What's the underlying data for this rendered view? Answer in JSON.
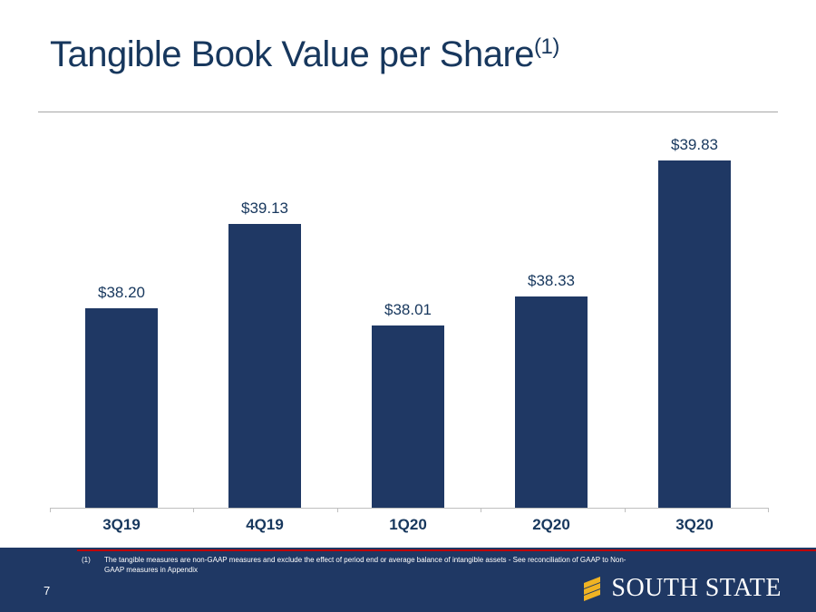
{
  "slide": {
    "title": "Tangible Book Value per Share",
    "title_superscript": "(1)",
    "page_number": "7",
    "footnote_marker": "(1)",
    "footnote_line1": "The tangible measures are non-GAAP measures and exclude the effect of period end or  average balance of intangible assets - See reconciliation  of GAAP to Non-",
    "footnote_line2": "GAAP measures in Appendix",
    "logo_text": "SOUTH STATE"
  },
  "chart_data": {
    "type": "bar",
    "categories": [
      "3Q19",
      "4Q19",
      "1Q20",
      "2Q20",
      "3Q20"
    ],
    "values": [
      38.2,
      39.13,
      38.01,
      38.33,
      39.83
    ],
    "labels": [
      "$38.20",
      "$39.13",
      "$38.01",
      "$38.33",
      "$39.83"
    ],
    "title": "Tangible Book Value per Share",
    "xlabel": "",
    "ylabel": "",
    "ylim": [
      36,
      40
    ],
    "grid": false,
    "legend": false,
    "bar_color": "#1F3864",
    "label_color": "#17375D"
  },
  "colors": {
    "navy": "#1F3864",
    "text_navy": "#17375D",
    "red": "#C00000",
    "gold": "#F0B323",
    "axis_gray": "#BFBFBF"
  }
}
